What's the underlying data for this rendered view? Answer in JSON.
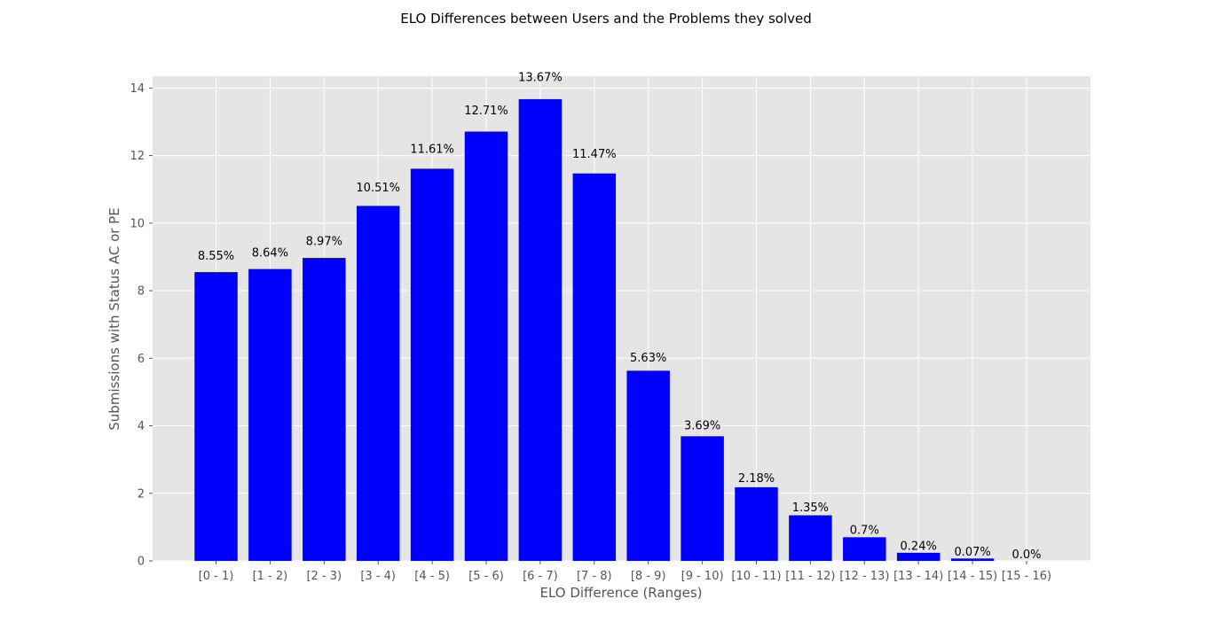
{
  "chart_data": {
    "type": "bar",
    "title": "ELO Differences between Users and the Problems they solved",
    "xlabel": "ELO Difference (Ranges)",
    "ylabel": "Submissions with Status AC or PE",
    "categories": [
      "[0 - 1)",
      "[1 - 2)",
      "[2 - 3)",
      "[3 - 4)",
      "[4 - 5)",
      "[5 - 6)",
      "[6 - 7)",
      "[7 - 8)",
      "[8 - 9)",
      "[9 - 10)",
      "[10 - 11)",
      "[11 - 12)",
      "[12 - 13)",
      "[13 - 14)",
      "[14 - 15)",
      "[15 - 16)"
    ],
    "values": [
      8.55,
      8.64,
      8.97,
      10.51,
      11.61,
      12.71,
      13.67,
      11.47,
      5.63,
      3.69,
      2.18,
      1.35,
      0.7,
      0.24,
      0.07,
      0.0
    ],
    "data_labels": [
      "8.55%",
      "8.64%",
      "8.97%",
      "10.51%",
      "11.61%",
      "12.71%",
      "13.67%",
      "11.47%",
      "5.63%",
      "3.69%",
      "2.18%",
      "1.35%",
      "0.7%",
      "0.24%",
      "0.07%",
      "0.0%"
    ],
    "ylim": [
      0,
      14.35
    ],
    "yticks": [
      0,
      2,
      4,
      6,
      8,
      10,
      12,
      14
    ],
    "grid": true,
    "colors": {
      "bar": "#0000ff",
      "plot_background": "#e5e5e5",
      "grid": "#ffffff"
    }
  }
}
